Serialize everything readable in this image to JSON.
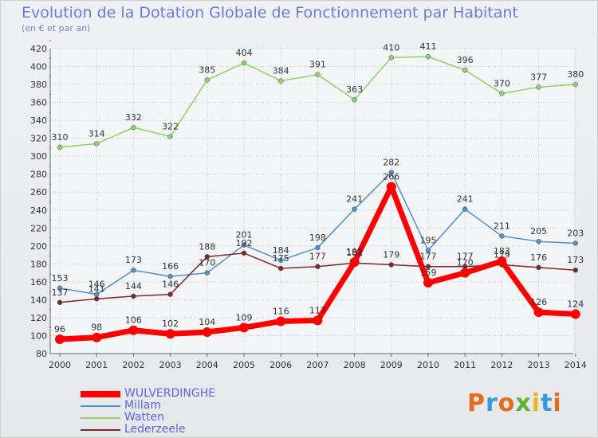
{
  "header": {
    "title": "Evolution de la Dotation Globale de Fonctionnement par Habitant",
    "subtitle": "(en € et par an)"
  },
  "logo": {
    "text": "Proxiti",
    "colors": [
      "#e46c1f",
      "#3a9ad9",
      "#e46c1f",
      "#5db234",
      "#e4b81f",
      "#3a9ad9",
      "#e46c1f"
    ]
  },
  "chart_data": {
    "type": "line",
    "x": [
      "2000",
      "2001",
      "2002",
      "2003",
      "2004",
      "2005",
      "2006",
      "2007",
      "2008",
      "2009",
      "2010",
      "2011",
      "2012",
      "2013",
      "2014"
    ],
    "ylim": [
      80,
      420
    ],
    "yticks": [
      80,
      100,
      120,
      140,
      160,
      180,
      200,
      220,
      240,
      260,
      280,
      300,
      320,
      340,
      360,
      380,
      400,
      420
    ],
    "grid": true,
    "legend_position": "bottom-left",
    "series": [
      {
        "name": "WULVERDINGHE",
        "color": "#ff0000",
        "values": [
          96,
          98,
          106,
          102,
          104,
          109,
          116,
          117,
          182,
          266,
          159,
          170,
          183,
          126,
          124
        ],
        "labels": [
          "96",
          "98",
          "106",
          "102",
          "104",
          "109",
          "116",
          "117",
          "182",
          "266",
          "159",
          "170",
          "183",
          "126",
          "124"
        ]
      },
      {
        "name": "Millam",
        "color": "#4f91c9",
        "values": [
          153,
          146,
          173,
          166,
          170,
          201,
          184,
          198,
          241,
          282,
          195,
          241,
          211,
          205,
          203
        ],
        "labels": [
          "153",
          "146",
          "173",
          "166",
          "170",
          "201",
          "184",
          "198",
          "241",
          "282",
          "195",
          "241",
          "211",
          "205",
          "203"
        ]
      },
      {
        "name": "Watten",
        "color": "#8fd06a",
        "values": [
          310,
          314,
          332,
          322,
          385,
          404,
          384,
          391,
          363,
          410,
          411,
          396,
          370,
          377,
          380
        ],
        "labels": [
          "310",
          "314",
          "332",
          "322",
          "385",
          "404",
          "384",
          "391",
          "363",
          "410",
          "411",
          "396",
          "370",
          "377",
          "380"
        ]
      },
      {
        "name": "Lederzeele",
        "color": "#7a2a2a",
        "values": [
          137,
          141,
          144,
          146,
          188,
          192,
          175,
          177,
          181,
          179,
          177,
          177,
          179,
          176,
          173
        ],
        "labels": [
          "137",
          "141",
          "144",
          "146",
          "188",
          "192",
          "175",
          "177",
          "181",
          "179",
          "177",
          "177",
          "179",
          "176",
          "173"
        ]
      }
    ]
  }
}
